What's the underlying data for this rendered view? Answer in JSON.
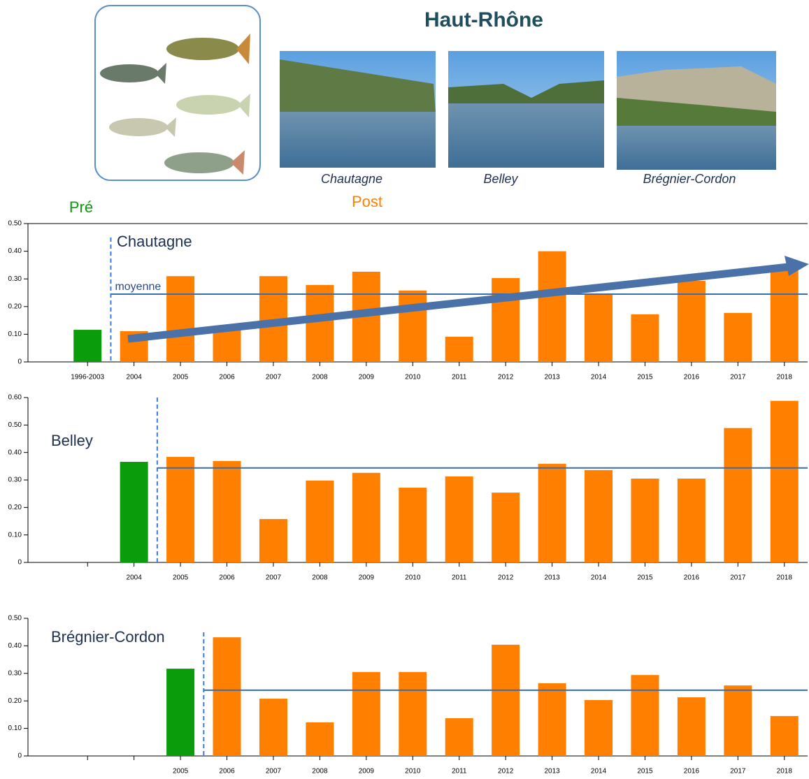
{
  "header": {
    "title": "Haut-Rhône"
  },
  "photos": [
    {
      "caption": "Chautagne"
    },
    {
      "caption": "Belley"
    },
    {
      "caption": "Brégnier-Cordon"
    }
  ],
  "chart_data": [
    {
      "type": "bar",
      "title": "Chautagne",
      "mean_label": "moyenne",
      "mean": 0.245,
      "categories": [
        "1996-2003",
        "2004",
        "2005",
        "2006",
        "2007",
        "2008",
        "2009",
        "2010",
        "2011",
        "2012",
        "2013",
        "2014",
        "2015",
        "2016",
        "2017",
        "2018"
      ],
      "series": [
        {
          "name": "Pré",
          "color": "#0a9c0a",
          "values": [
            0.116,
            null,
            null,
            null,
            null,
            null,
            null,
            null,
            null,
            null,
            null,
            null,
            null,
            null,
            null,
            null
          ]
        },
        {
          "name": "Post",
          "color": "#ff7f00",
          "values": [
            null,
            0.111,
            0.31,
            0.13,
            0.31,
            0.278,
            0.326,
            0.258,
            0.091,
            0.303,
            0.4,
            0.245,
            0.172,
            0.293,
            0.177,
            0.33
          ]
        }
      ],
      "ylim": [
        0,
        0.5
      ],
      "yticks": [
        0,
        {
          "value": 0.1,
          "label": "0.10"
        },
        {
          "value": 0.2,
          "label": "0.20"
        },
        {
          "value": 0.3,
          "label": "0.30"
        },
        {
          "value": 0.4,
          "label": "0.40"
        },
        {
          "value": 0.5,
          "label": "0.50"
        }
      ]
    },
    {
      "type": "bar",
      "title": "Belley",
      "mean": 0.344,
      "categories": [
        null,
        "2004",
        "2005",
        "2006",
        "2007",
        "2008",
        "2009",
        "2010",
        "2011",
        "2012",
        "2013",
        "2014",
        "2015",
        "2016",
        "2017",
        "2018"
      ],
      "series": [
        {
          "name": "Pré",
          "color": "#0a9c0a",
          "values": [
            null,
            0.366,
            null,
            null,
            null,
            null,
            null,
            null,
            null,
            null,
            null,
            null,
            null,
            null,
            null,
            null
          ]
        },
        {
          "name": "Post",
          "color": "#ff7f00",
          "values": [
            null,
            null,
            0.384,
            0.369,
            0.158,
            0.298,
            0.326,
            0.272,
            0.313,
            0.254,
            0.359,
            0.336,
            0.305,
            0.305,
            0.489,
            0.588
          ]
        }
      ],
      "ylim": [
        0,
        0.6
      ],
      "yticks": [
        0,
        {
          "value": 0.1,
          "label": "0.10"
        },
        {
          "value": 0.2,
          "label": "0.20"
        },
        {
          "value": 0.3,
          "label": "0.30"
        },
        {
          "value": 0.4,
          "label": "0.40"
        },
        {
          "value": 0.5,
          "label": "0.50"
        },
        {
          "value": 0.6,
          "label": "0.60"
        }
      ]
    },
    {
      "type": "bar",
      "title": "Brégnier-Cordon",
      "mean": 0.239,
      "categories": [
        null,
        null,
        "2005",
        "2006",
        "2007",
        "2008",
        "2009",
        "2010",
        "2011",
        "2012",
        "2013",
        "2014",
        "2015",
        "2016",
        "2017",
        "2018"
      ],
      "series": [
        {
          "name": "Pré",
          "color": "#0a9c0a",
          "values": [
            null,
            null,
            0.317,
            null,
            null,
            null,
            null,
            null,
            null,
            null,
            null,
            null,
            null,
            null,
            null,
            null
          ]
        },
        {
          "name": "Post",
          "color": "#ff7f00",
          "values": [
            null,
            null,
            null,
            0.431,
            0.208,
            0.122,
            0.305,
            0.305,
            0.137,
            0.404,
            0.264,
            0.203,
            0.294,
            0.213,
            0.256,
            0.145
          ]
        }
      ],
      "ylim": [
        0,
        0.5
      ],
      "yticks": [
        0,
        {
          "value": 0.1,
          "label": "0.10"
        },
        {
          "value": 0.2,
          "label": "0.20"
        },
        {
          "value": 0.3,
          "label": "0.30"
        },
        {
          "value": 0.4,
          "label": "0.40"
        },
        {
          "value": 0.5,
          "label": "0.50"
        }
      ]
    }
  ]
}
